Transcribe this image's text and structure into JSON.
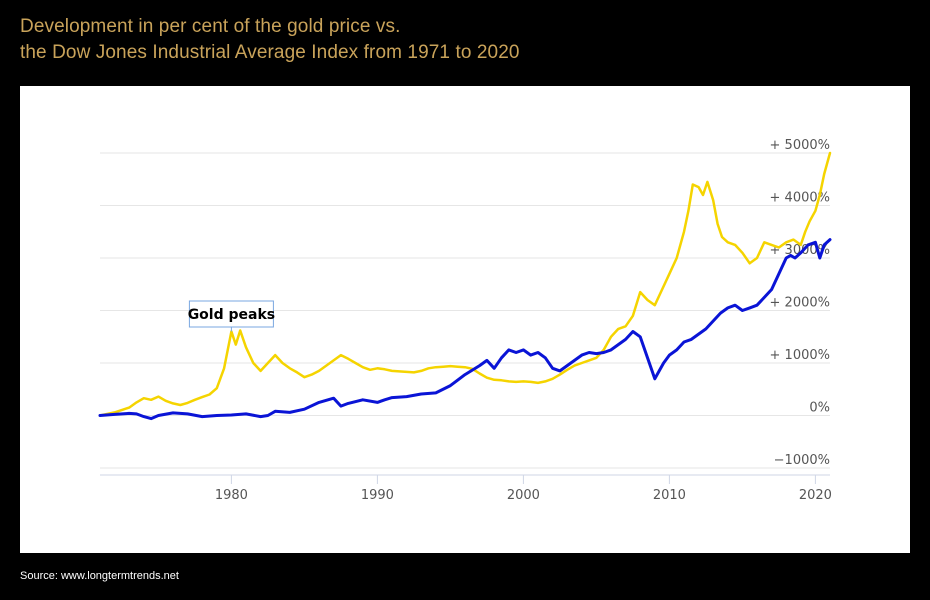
{
  "title_line1": "Development in per cent of the gold price vs.",
  "title_line2": "the Dow Jones Industrial Average Index from 1971 to 2020",
  "source": "Source: www.longtermtrends.net",
  "chart_data": {
    "type": "line",
    "ylim": [
      -1000,
      5000
    ],
    "xlim": [
      1971,
      2021
    ],
    "y_ticks": [
      {
        "value": -1000,
        "label": "−1000%"
      },
      {
        "value": 0,
        "label": "0%"
      },
      {
        "value": 1000,
        "label": "+ 1000%"
      },
      {
        "value": 2000,
        "label": "+ 2000%"
      },
      {
        "value": 3000,
        "label": "+ 3000%"
      },
      {
        "value": 4000,
        "label": "+ 4000%"
      },
      {
        "value": 5000,
        "label": "+ 5000%"
      }
    ],
    "x_ticks": [
      1980,
      1990,
      2000,
      2010,
      2020
    ],
    "grid": true,
    "annotations": [
      {
        "text": "Gold peaks",
        "x": 1980.0,
        "y": 1600
      }
    ],
    "series": [
      {
        "color": "#f5d400",
        "x": [
          1971,
          1972,
          1973,
          1973.5,
          1974,
          1974.5,
          1975,
          1975.5,
          1976,
          1976.5,
          1977,
          1977.5,
          1978,
          1978.5,
          1979,
          1979.5,
          1980.0,
          1980.3,
          1980.6,
          1981,
          1981.5,
          1982,
          1982.5,
          1983,
          1983.5,
          1984,
          1984.5,
          1985,
          1985.5,
          1986,
          1986.5,
          1987,
          1987.5,
          1988,
          1988.5,
          1989,
          1989.5,
          1990,
          1990.5,
          1991,
          1991.5,
          1992,
          1992.5,
          1993,
          1993.5,
          1994,
          1994.5,
          1995,
          1995.5,
          1996,
          1996.5,
          1997,
          1997.5,
          1998,
          1998.5,
          1999,
          1999.5,
          2000,
          2000.5,
          2001,
          2001.5,
          2002,
          2002.5,
          2003,
          2003.5,
          2004,
          2004.5,
          2005,
          2005.5,
          2006,
          2006.5,
          2007,
          2007.5,
          2008,
          2008.5,
          2009,
          2009.5,
          2010,
          2010.5,
          2011,
          2011.3,
          2011.6,
          2012,
          2012.3,
          2012.6,
          2013,
          2013.3,
          2013.6,
          2014,
          2014.5,
          2015,
          2015.5,
          2016,
          2016.5,
          2017,
          2017.5,
          2018,
          2018.5,
          2019,
          2019.3,
          2019.6,
          2020,
          2020.3,
          2020.6,
          2021
        ],
        "y": [
          0,
          60,
          150,
          250,
          330,
          300,
          360,
          280,
          230,
          200,
          240,
          300,
          350,
          400,
          520,
          900,
          1600,
          1350,
          1620,
          1300,
          1000,
          850,
          1000,
          1150,
          1000,
          900,
          820,
          730,
          780,
          850,
          950,
          1050,
          1150,
          1080,
          1000,
          920,
          870,
          900,
          880,
          850,
          840,
          830,
          820,
          850,
          900,
          920,
          930,
          940,
          930,
          920,
          890,
          800,
          720,
          680,
          670,
          650,
          640,
          650,
          640,
          620,
          650,
          700,
          780,
          870,
          950,
          1000,
          1050,
          1100,
          1250,
          1500,
          1650,
          1700,
          1900,
          2350,
          2200,
          2100,
          2400,
          2700,
          3000,
          3500,
          3900,
          4400,
          4350,
          4200,
          4450,
          4100,
          3650,
          3400,
          3300,
          3250,
          3100,
          2900,
          3000,
          3300,
          3250,
          3200,
          3300,
          3350,
          3250,
          3500,
          3700,
          3900,
          4200,
          4600,
          5000
        ]
      },
      {
        "color": "#0a14d6",
        "x": [
          1971,
          1972,
          1973,
          1973.5,
          1974,
          1974.5,
          1975,
          1976,
          1977,
          1978,
          1979,
          1980,
          1981,
          1982,
          1982.5,
          1983,
          1984,
          1985,
          1986,
          1987,
          1987.5,
          1988,
          1989,
          1990,
          1990.5,
          1991,
          1992,
          1993,
          1994,
          1995,
          1996,
          1997,
          1997.5,
          1998,
          1998.5,
          1999,
          1999.5,
          2000,
          2000.5,
          2001,
          2001.5,
          2002,
          2002.5,
          2003,
          2003.5,
          2004,
          2004.5,
          2005,
          2005.5,
          2006,
          2006.5,
          2007,
          2007.5,
          2008,
          2008.5,
          2009,
          2009.3,
          2009.6,
          2010,
          2010.5,
          2011,
          2011.5,
          2012,
          2012.5,
          2013,
          2013.5,
          2014,
          2014.5,
          2015,
          2015.5,
          2016,
          2016.5,
          2017,
          2017.5,
          2018,
          2018.3,
          2018.6,
          2019,
          2019.5,
          2020,
          2020.3,
          2020.6,
          2021
        ],
        "y": [
          0,
          20,
          40,
          30,
          -20,
          -60,
          0,
          50,
          30,
          -20,
          0,
          10,
          30,
          -20,
          0,
          80,
          60,
          120,
          250,
          330,
          180,
          230,
          300,
          250,
          300,
          340,
          360,
          410,
          430,
          570,
          780,
          950,
          1050,
          900,
          1100,
          1250,
          1200,
          1250,
          1150,
          1200,
          1100,
          900,
          850,
          950,
          1050,
          1150,
          1200,
          1180,
          1200,
          1250,
          1350,
          1450,
          1600,
          1500,
          1100,
          700,
          850,
          1000,
          1150,
          1250,
          1400,
          1450,
          1550,
          1650,
          1800,
          1950,
          2050,
          2100,
          2000,
          2050,
          2100,
          2250,
          2400,
          2700,
          3000,
          3050,
          3000,
          3100,
          3250,
          3300,
          3000,
          3250,
          3350
        ]
      }
    ]
  }
}
